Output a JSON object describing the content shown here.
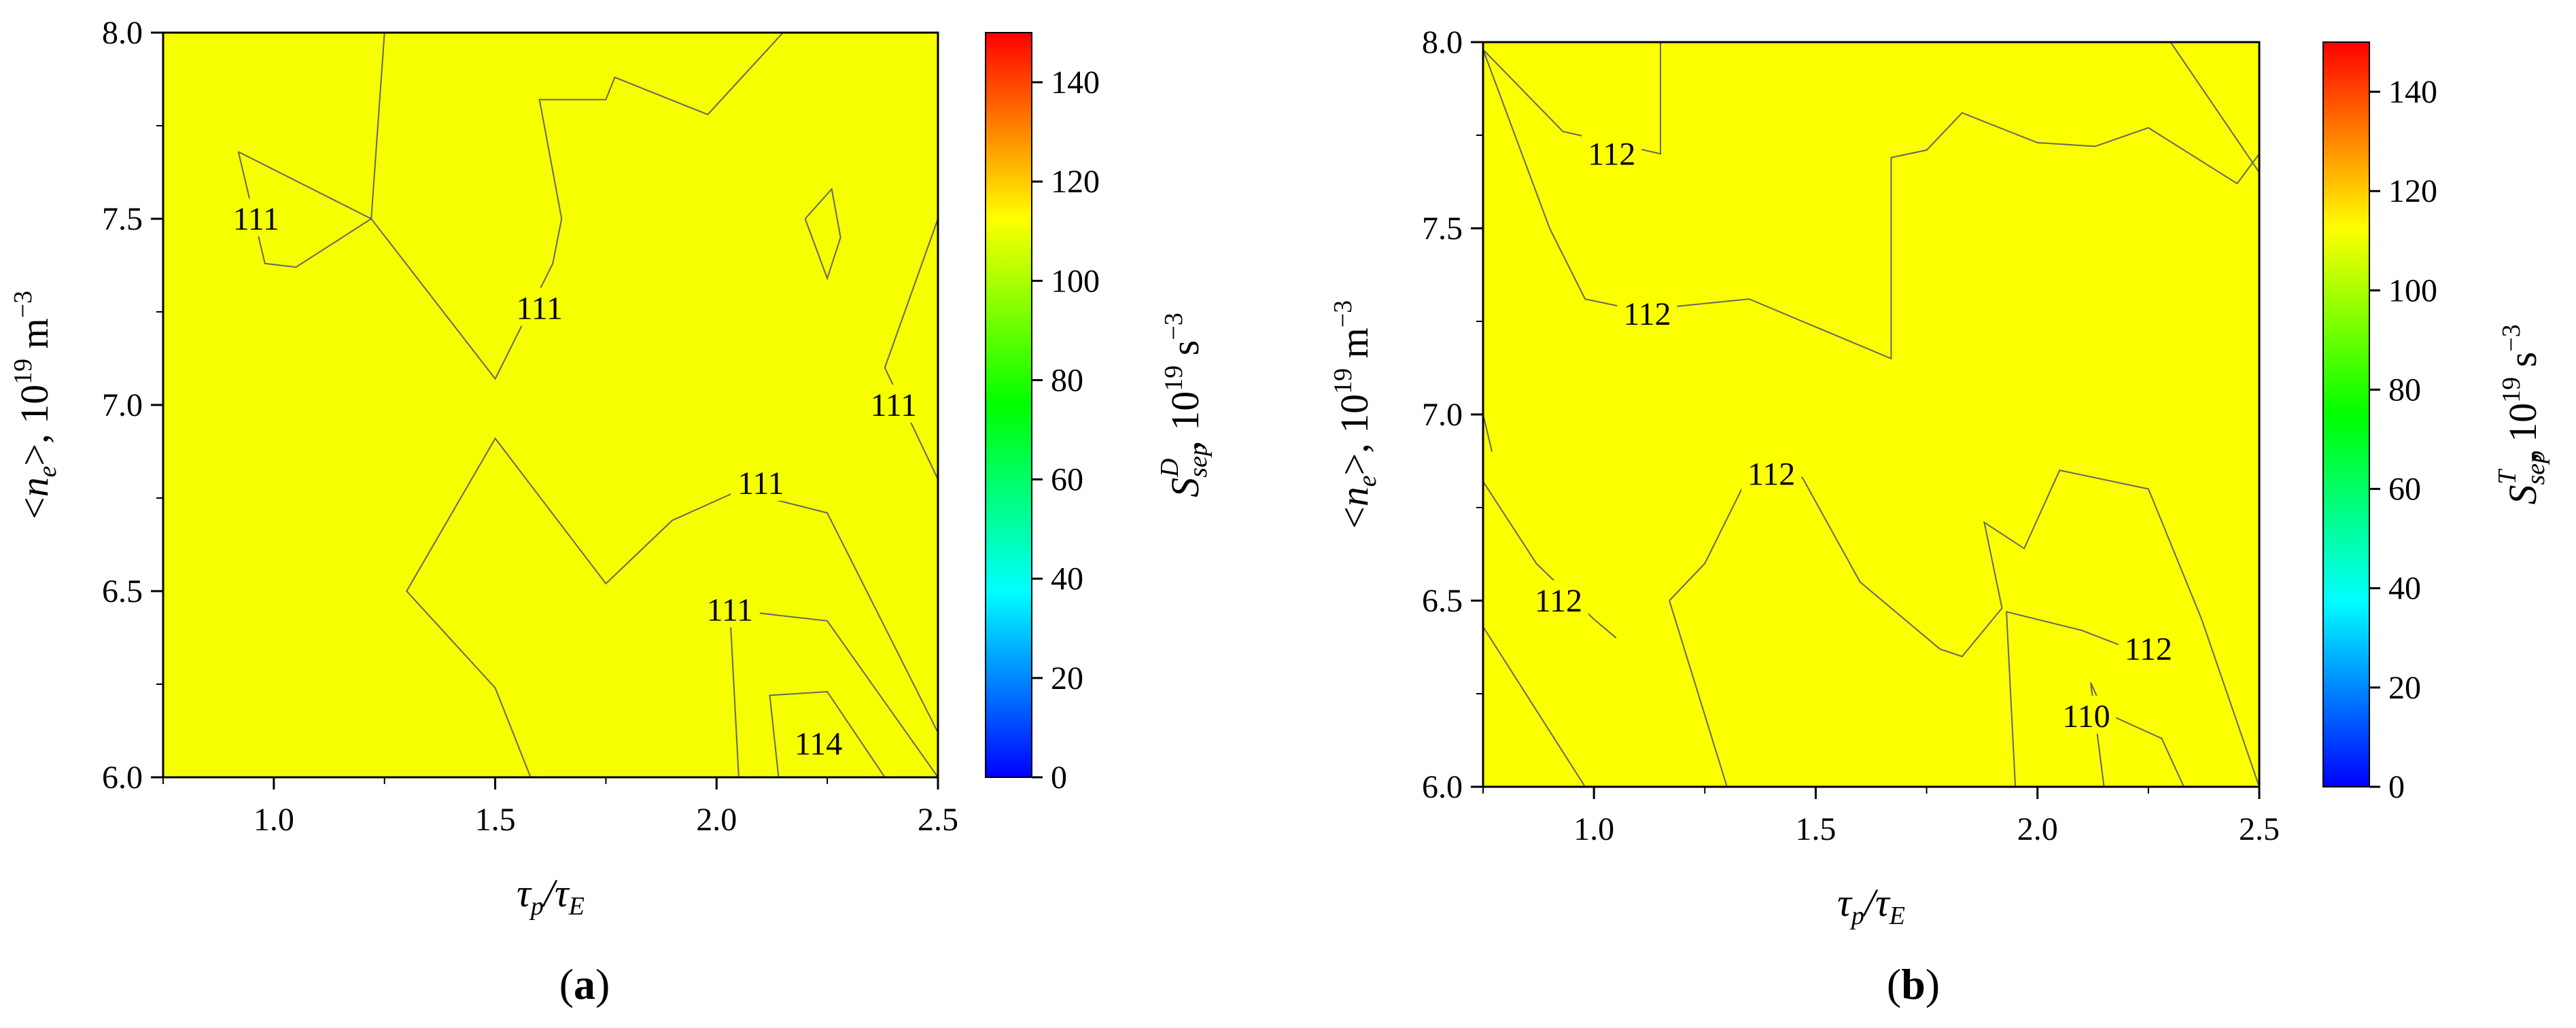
{
  "chart_data": [
    {
      "type": "heatmap",
      "panel_label": "(a)",
      "xlabel": "τp/τE",
      "ylabel": "<ne>, 10^19 m^-3",
      "colorbar_label": "Ssep^D, 10^19 s^-3",
      "xlim": [
        0.75,
        2.5
      ],
      "ylim": [
        6.0,
        8.0
      ],
      "zlim": [
        0,
        150
      ],
      "xticks": [
        1.0,
        1.5,
        2.0,
        2.5
      ],
      "yticks": [
        6.0,
        6.5,
        7.0,
        7.5,
        8.0
      ],
      "colorbar_ticks": [
        0,
        20,
        40,
        60,
        80,
        100,
        120,
        140
      ],
      "xtick_labels": [
        "1.0",
        "1.5",
        "2.0",
        "2.5"
      ],
      "ytick_labels": [
        "6.0",
        "6.5",
        "7.0",
        "7.5",
        "8.0"
      ],
      "colorbar_tick_labels": [
        "0",
        "20",
        "40",
        "60",
        "80",
        "100",
        "120",
        "140"
      ],
      "base_value": 111,
      "contour_labels": [
        {
          "text": "111",
          "x": 0.96,
          "y": 7.5
        },
        {
          "text": "111",
          "x": 1.6,
          "y": 7.26
        },
        {
          "text": "111",
          "x": 2.4,
          "y": 7.0
        },
        {
          "text": "111",
          "x": 2.1,
          "y": 6.79
        },
        {
          "text": "111",
          "x": 2.03,
          "y": 6.45
        },
        {
          "text": "114",
          "x": 2.23,
          "y": 6.09
        }
      ],
      "contours": [
        [
          [
            0.92,
            7.68
          ],
          [
            1.22,
            7.5
          ],
          [
            1.05,
            7.37
          ],
          [
            0.98,
            7.38
          ],
          [
            0.92,
            7.68
          ]
        ],
        [
          [
            1.25,
            8.0
          ],
          [
            1.22,
            7.5
          ],
          [
            1.5,
            7.07
          ],
          [
            1.63,
            7.38
          ],
          [
            1.65,
            7.5
          ],
          [
            1.6,
            7.82
          ],
          [
            1.75,
            7.82
          ],
          [
            1.77,
            7.88
          ],
          [
            1.98,
            7.78
          ],
          [
            2.15,
            8.0
          ]
        ],
        [
          [
            2.2,
            7.5
          ],
          [
            2.26,
            7.58
          ],
          [
            2.28,
            7.45
          ],
          [
            2.25,
            7.34
          ],
          [
            2.2,
            7.5
          ]
        ],
        [
          [
            2.5,
            7.5
          ],
          [
            2.38,
            7.1
          ],
          [
            2.5,
            6.8
          ]
        ],
        [
          [
            1.58,
            6.0
          ],
          [
            1.5,
            6.24
          ],
          [
            1.3,
            6.5
          ],
          [
            1.5,
            6.91
          ],
          [
            1.75,
            6.52
          ],
          [
            1.9,
            6.69
          ],
          [
            2.05,
            6.77
          ],
          [
            2.25,
            6.71
          ],
          [
            2.5,
            6.12
          ]
        ],
        [
          [
            2.05,
            6.0
          ],
          [
            2.03,
            6.45
          ],
          [
            2.25,
            6.42
          ],
          [
            2.5,
            6.0
          ]
        ],
        [
          [
            2.14,
            6.0
          ],
          [
            2.12,
            6.22
          ],
          [
            2.25,
            6.23
          ],
          [
            2.38,
            6.0
          ]
        ]
      ]
    },
    {
      "type": "heatmap",
      "panel_label": "(b)",
      "xlabel": "τp/τE",
      "ylabel": "<ne>, 10^19 m^-3",
      "colorbar_label": "Ssep^T, 10^19 s^-3",
      "xlim": [
        0.75,
        2.5
      ],
      "ylim": [
        6.0,
        8.0
      ],
      "zlim": [
        0,
        150
      ],
      "xticks": [
        1.0,
        1.5,
        2.0,
        2.5
      ],
      "yticks": [
        6.0,
        6.5,
        7.0,
        7.5,
        8.0
      ],
      "colorbar_ticks": [
        0,
        20,
        40,
        60,
        80,
        100,
        120,
        140
      ],
      "xtick_labels": [
        "1.0",
        "1.5",
        "2.0",
        "2.5"
      ],
      "ytick_labels": [
        "6.0",
        "6.5",
        "7.0",
        "7.5",
        "8.0"
      ],
      "colorbar_tick_labels": [
        "0",
        "20",
        "40",
        "60",
        "80",
        "100",
        "120",
        "140"
      ],
      "base_value": 112,
      "contour_labels": [
        {
          "text": "112",
          "x": 1.04,
          "y": 7.7
        },
        {
          "text": "112",
          "x": 1.12,
          "y": 7.27
        },
        {
          "text": "112",
          "x": 1.4,
          "y": 6.84
        },
        {
          "text": "112",
          "x": 0.92,
          "y": 6.5
        },
        {
          "text": "112",
          "x": 2.25,
          "y": 6.37
        },
        {
          "text": "110",
          "x": 2.11,
          "y": 6.19
        }
      ],
      "contours": [
        [
          [
            0.75,
            7.98
          ],
          [
            0.93,
            7.76
          ],
          [
            1.15,
            7.7
          ],
          [
            1.15,
            8.0
          ]
        ],
        [
          [
            0.75,
            7.98
          ],
          [
            0.9,
            7.5
          ],
          [
            0.98,
            7.31
          ],
          [
            1.1,
            7.28
          ],
          [
            1.35,
            7.31
          ],
          [
            1.67,
            7.15
          ],
          [
            1.67,
            7.69
          ],
          [
            1.75,
            7.71
          ],
          [
            1.83,
            7.81
          ],
          [
            2.0,
            7.73
          ],
          [
            2.13,
            7.72
          ],
          [
            2.25,
            7.77
          ],
          [
            2.45,
            7.62
          ],
          [
            2.5,
            7.7
          ]
        ],
        [
          [
            2.3,
            8.0
          ],
          [
            2.5,
            7.65
          ]
        ],
        [
          [
            0.75,
            7.0
          ],
          [
            0.77,
            6.9
          ]
        ],
        [
          [
            0.75,
            6.82
          ],
          [
            0.87,
            6.6
          ],
          [
            1.0,
            6.45
          ],
          [
            1.05,
            6.4
          ]
        ],
        [
          [
            0.75,
            6.43
          ],
          [
            0.98,
            6.0
          ]
        ],
        [
          [
            1.17,
            6.5
          ],
          [
            1.25,
            6.6
          ],
          [
            1.35,
            6.84
          ],
          [
            1.47,
            6.83
          ],
          [
            1.6,
            6.55
          ],
          [
            1.78,
            6.37
          ],
          [
            1.83,
            6.35
          ],
          [
            1.92,
            6.48
          ],
          [
            1.88,
            6.71
          ],
          [
            1.97,
            6.64
          ],
          [
            2.05,
            6.85
          ],
          [
            2.25,
            6.8
          ],
          [
            2.37,
            6.45
          ],
          [
            2.5,
            6.0
          ]
        ],
        [
          [
            1.3,
            6.0
          ],
          [
            1.17,
            6.5
          ]
        ],
        [
          [
            1.95,
            6.0
          ],
          [
            1.93,
            6.47
          ],
          [
            2.1,
            6.42
          ],
          [
            2.23,
            6.36
          ]
        ],
        [
          [
            2.15,
            6.0
          ],
          [
            2.12,
            6.28
          ],
          [
            2.15,
            6.2
          ],
          [
            2.28,
            6.13
          ],
          [
            2.33,
            6.0
          ]
        ]
      ]
    }
  ]
}
